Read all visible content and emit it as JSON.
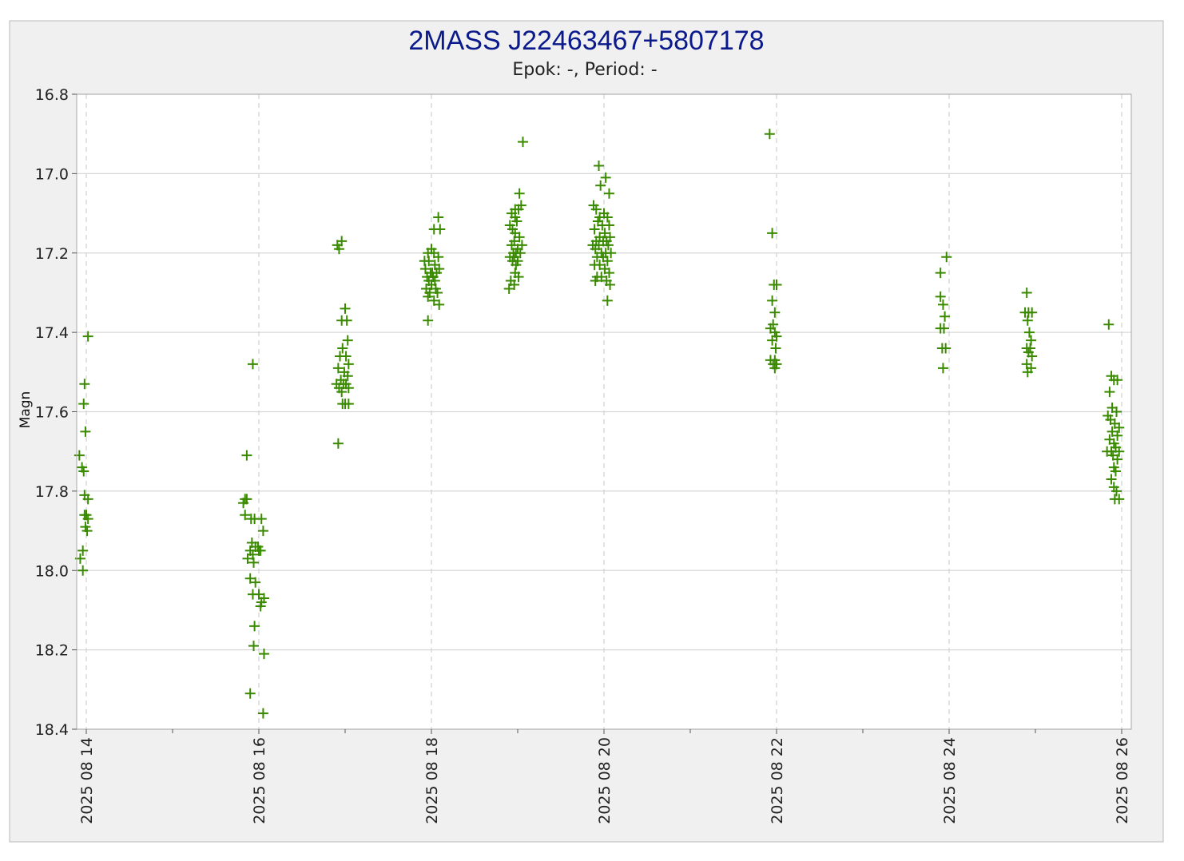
{
  "colors": {
    "title": "#0a1a8c",
    "marker": "#3a8a00",
    "panel": "#f0f0f0",
    "plot_bg": "#ffffff",
    "grid_major": "#d8d8d8",
    "grid_dashed": "#d0d0d0",
    "text": "#222222"
  },
  "chart_data": {
    "type": "scatter",
    "title": "2MASS J22463467+5807178",
    "subtitle": "Epok: -, Period: -",
    "xlabel": "",
    "ylabel": "Magn",
    "y_inverted": true,
    "ylim": [
      16.8,
      18.4
    ],
    "y_ticks": [
      "16.8",
      "17.0",
      "17.2",
      "17.4",
      "17.6",
      "17.8",
      "18.0",
      "18.2",
      "18.4"
    ],
    "xlim": [
      0,
      14.45
    ],
    "x_unit": "days since 2025 08 14 (major ticks at labeled dates)",
    "x_ticks": [
      "2025 08 14",
      "2025 08 16",
      "2025 08 18",
      "2025 08 20",
      "2025 08 22",
      "2025 08 24",
      "2025 08 26"
    ],
    "marker": "plus",
    "grid": true,
    "series": [
      {
        "name": "",
        "points": [
          [
            0.02,
            17.41
          ],
          [
            -0.02,
            17.53
          ],
          [
            -0.03,
            17.58
          ],
          [
            -0.01,
            17.65
          ],
          [
            -0.08,
            17.71
          ],
          [
            -0.05,
            17.74
          ],
          [
            -0.03,
            17.75
          ],
          [
            -0.02,
            17.81
          ],
          [
            0.02,
            17.82
          ],
          [
            -0.02,
            17.86
          ],
          [
            0.0,
            17.86
          ],
          [
            0.02,
            17.87
          ],
          [
            -0.01,
            17.89
          ],
          [
            0.01,
            17.9
          ],
          [
            -0.04,
            17.95
          ],
          [
            -0.07,
            17.97
          ],
          [
            -0.04,
            18.0
          ],
          [
            1.93,
            17.48
          ],
          [
            1.86,
            17.71
          ],
          [
            1.84,
            17.82
          ],
          [
            1.86,
            17.82
          ],
          [
            1.82,
            17.83
          ],
          [
            1.84,
            17.86
          ],
          [
            1.91,
            17.87
          ],
          [
            1.95,
            17.87
          ],
          [
            2.03,
            17.87
          ],
          [
            2.05,
            17.9
          ],
          [
            1.92,
            17.93
          ],
          [
            1.96,
            17.94
          ],
          [
            1.99,
            17.94
          ],
          [
            1.9,
            17.95
          ],
          [
            2.0,
            17.95
          ],
          [
            2.02,
            17.95
          ],
          [
            1.93,
            17.96
          ],
          [
            1.87,
            17.97
          ],
          [
            1.94,
            17.98
          ],
          [
            1.9,
            18.02
          ],
          [
            1.96,
            18.03
          ],
          [
            1.93,
            18.06
          ],
          [
            2.0,
            18.06
          ],
          [
            2.06,
            18.07
          ],
          [
            2.03,
            18.08
          ],
          [
            2.02,
            18.09
          ],
          [
            1.95,
            18.14
          ],
          [
            1.94,
            18.19
          ],
          [
            2.06,
            18.21
          ],
          [
            1.9,
            18.31
          ],
          [
            2.05,
            18.36
          ],
          [
            2.96,
            17.17
          ],
          [
            2.91,
            17.18
          ],
          [
            2.93,
            17.19
          ],
          [
            3.0,
            17.34
          ],
          [
            2.96,
            17.37
          ],
          [
            3.02,
            17.37
          ],
          [
            3.03,
            17.42
          ],
          [
            2.97,
            17.44
          ],
          [
            3.01,
            17.46
          ],
          [
            2.94,
            17.46
          ],
          [
            3.04,
            17.48
          ],
          [
            2.92,
            17.49
          ],
          [
            2.99,
            17.5
          ],
          [
            3.03,
            17.51
          ],
          [
            2.95,
            17.52
          ],
          [
            2.9,
            17.53
          ],
          [
            2.98,
            17.53
          ],
          [
            3.01,
            17.53
          ],
          [
            2.93,
            17.54
          ],
          [
            3.04,
            17.54
          ],
          [
            2.96,
            17.55
          ],
          [
            2.97,
            17.58
          ],
          [
            3.0,
            17.58
          ],
          [
            3.04,
            17.58
          ],
          [
            2.92,
            17.68
          ],
          [
            4.08,
            17.11
          ],
          [
            4.03,
            17.14
          ],
          [
            4.1,
            17.14
          ],
          [
            4.0,
            17.19
          ],
          [
            3.96,
            17.2
          ],
          [
            4.03,
            17.2
          ],
          [
            4.08,
            17.21
          ],
          [
            3.92,
            17.22
          ],
          [
            3.97,
            17.22
          ],
          [
            4.04,
            17.23
          ],
          [
            3.93,
            17.24
          ],
          [
            4.09,
            17.24
          ],
          [
            3.99,
            17.25
          ],
          [
            4.01,
            17.25
          ],
          [
            4.06,
            17.25
          ],
          [
            3.95,
            17.26
          ],
          [
            4.02,
            17.26
          ],
          [
            3.97,
            17.27
          ],
          [
            4.04,
            17.27
          ],
          [
            4.0,
            17.28
          ],
          [
            3.94,
            17.29
          ],
          [
            4.05,
            17.29
          ],
          [
            3.98,
            17.3
          ],
          [
            4.07,
            17.3
          ],
          [
            3.96,
            17.31
          ],
          [
            4.03,
            17.32
          ],
          [
            4.09,
            17.33
          ],
          [
            3.96,
            17.37
          ],
          [
            5.06,
            16.92
          ],
          [
            5.02,
            17.05
          ],
          [
            5.04,
            17.08
          ],
          [
            4.97,
            17.09
          ],
          [
            5.01,
            17.09
          ],
          [
            4.93,
            17.1
          ],
          [
            4.97,
            17.11
          ],
          [
            4.99,
            17.12
          ],
          [
            4.91,
            17.13
          ],
          [
            4.94,
            17.14
          ],
          [
            4.97,
            17.15
          ],
          [
            5.02,
            17.16
          ],
          [
            4.96,
            17.17
          ],
          [
            4.93,
            17.18
          ],
          [
            5.05,
            17.18
          ],
          [
            5.0,
            17.19
          ],
          [
            4.95,
            17.2
          ],
          [
            4.98,
            17.2
          ],
          [
            5.03,
            17.2
          ],
          [
            4.91,
            17.21
          ],
          [
            4.96,
            17.21
          ],
          [
            5.0,
            17.22
          ],
          [
            4.94,
            17.22
          ],
          [
            4.98,
            17.23
          ],
          [
            4.97,
            17.25
          ],
          [
            5.01,
            17.26
          ],
          [
            4.92,
            17.27
          ],
          [
            4.96,
            17.28
          ],
          [
            4.9,
            17.29
          ],
          [
            5.94,
            16.98
          ],
          [
            6.02,
            17.01
          ],
          [
            5.96,
            17.03
          ],
          [
            6.06,
            17.05
          ],
          [
            5.88,
            17.08
          ],
          [
            5.91,
            17.09
          ],
          [
            6.0,
            17.1
          ],
          [
            5.95,
            17.11
          ],
          [
            6.04,
            17.11
          ],
          [
            5.93,
            17.12
          ],
          [
            5.98,
            17.13
          ],
          [
            6.06,
            17.13
          ],
          [
            5.89,
            17.14
          ],
          [
            6.01,
            17.15
          ],
          [
            5.95,
            17.16
          ],
          [
            6.07,
            17.16
          ],
          [
            5.91,
            17.17
          ],
          [
            5.99,
            17.17
          ],
          [
            6.03,
            17.17
          ],
          [
            5.87,
            17.18
          ],
          [
            5.94,
            17.18
          ],
          [
            6.05,
            17.18
          ],
          [
            5.9,
            17.19
          ],
          [
            5.97,
            17.2
          ],
          [
            6.02,
            17.2
          ],
          [
            6.08,
            17.2
          ],
          [
            5.92,
            17.21
          ],
          [
            5.99,
            17.21
          ],
          [
            6.04,
            17.22
          ],
          [
            5.89,
            17.23
          ],
          [
            5.95,
            17.23
          ],
          [
            6.01,
            17.24
          ],
          [
            6.06,
            17.25
          ],
          [
            5.92,
            17.26
          ],
          [
            5.97,
            17.26
          ],
          [
            6.03,
            17.27
          ],
          [
            5.9,
            17.27
          ],
          [
            6.07,
            17.28
          ],
          [
            6.04,
            17.32
          ],
          [
            7.92,
            16.9
          ],
          [
            7.95,
            17.15
          ],
          [
            7.97,
            17.28
          ],
          [
            8.0,
            17.28
          ],
          [
            7.95,
            17.32
          ],
          [
            7.98,
            17.35
          ],
          [
            7.96,
            17.38
          ],
          [
            7.93,
            17.39
          ],
          [
            7.98,
            17.4
          ],
          [
            8.0,
            17.41
          ],
          [
            7.95,
            17.42
          ],
          [
            7.99,
            17.44
          ],
          [
            7.93,
            17.47
          ],
          [
            7.98,
            17.47
          ],
          [
            8.0,
            17.48
          ],
          [
            7.96,
            17.48
          ],
          [
            7.98,
            17.49
          ],
          [
            9.9,
            17.25
          ],
          [
            9.97,
            17.21
          ],
          [
            9.9,
            17.31
          ],
          [
            9.93,
            17.33
          ],
          [
            9.95,
            17.36
          ],
          [
            9.9,
            17.39
          ],
          [
            9.94,
            17.39
          ],
          [
            9.92,
            17.44
          ],
          [
            9.96,
            17.44
          ],
          [
            9.93,
            17.49
          ],
          [
            10.9,
            17.3
          ],
          [
            10.88,
            17.35
          ],
          [
            10.92,
            17.35
          ],
          [
            10.96,
            17.35
          ],
          [
            10.91,
            17.37
          ],
          [
            10.93,
            17.4
          ],
          [
            10.95,
            17.42
          ],
          [
            10.9,
            17.44
          ],
          [
            10.94,
            17.44
          ],
          [
            10.92,
            17.45
          ],
          [
            10.96,
            17.46
          ],
          [
            10.9,
            17.48
          ],
          [
            10.95,
            17.49
          ],
          [
            10.91,
            17.5
          ],
          [
            11.85,
            17.38
          ],
          [
            11.88,
            17.51
          ],
          [
            11.91,
            17.52
          ],
          [
            11.95,
            17.52
          ],
          [
            11.86,
            17.55
          ],
          [
            11.89,
            17.59
          ],
          [
            11.94,
            17.6
          ],
          [
            11.84,
            17.61
          ],
          [
            11.87,
            17.62
          ],
          [
            11.92,
            17.63
          ],
          [
            11.97,
            17.64
          ],
          [
            11.89,
            17.65
          ],
          [
            11.95,
            17.66
          ],
          [
            11.86,
            17.67
          ],
          [
            11.91,
            17.68
          ],
          [
            11.93,
            17.69
          ],
          [
            11.88,
            17.7
          ],
          [
            11.97,
            17.7
          ],
          [
            11.83,
            17.7
          ],
          [
            11.9,
            17.71
          ],
          [
            11.95,
            17.72
          ],
          [
            11.91,
            17.74
          ],
          [
            11.93,
            17.75
          ],
          [
            11.88,
            17.77
          ],
          [
            11.91,
            17.79
          ],
          [
            11.94,
            17.8
          ],
          [
            11.92,
            17.82
          ],
          [
            11.97,
            17.82
          ]
        ]
      }
    ]
  }
}
